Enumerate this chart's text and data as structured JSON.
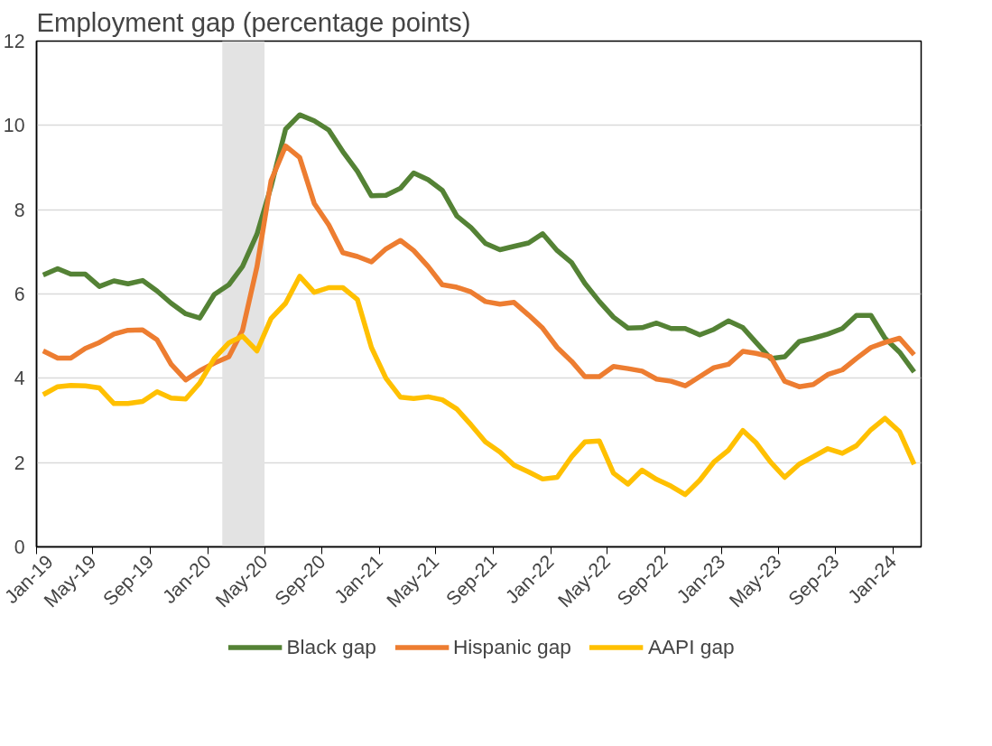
{
  "chart_data": {
    "type": "line",
    "title": "Employment gap (percentage points)",
    "x": [
      "2019-01-15",
      "2019-02-15",
      "2019-03-15",
      "2019-04-15",
      "2019-05-15",
      "2019-06-15",
      "2019-07-15",
      "2019-08-15",
      "2019-09-15",
      "2019-10-15",
      "2019-11-15",
      "2019-12-15",
      "2020-01-15",
      "2020-02-15",
      "2020-03-15",
      "2020-04-15",
      "2020-05-15",
      "2020-06-15",
      "2020-07-15",
      "2020-08-15",
      "2020-09-15",
      "2020-10-15",
      "2020-11-15",
      "2020-12-15",
      "2021-01-15",
      "2021-02-15",
      "2021-03-15",
      "2021-04-15",
      "2021-05-15",
      "2021-06-15",
      "2021-07-15",
      "2021-08-15",
      "2021-09-15",
      "2021-10-15",
      "2021-11-15",
      "2021-12-15",
      "2022-01-15",
      "2022-02-15",
      "2022-03-15",
      "2022-04-15",
      "2022-05-15",
      "2022-06-15",
      "2022-07-15",
      "2022-08-15",
      "2022-09-15",
      "2022-10-15",
      "2022-11-15",
      "2022-12-15",
      "2023-01-15",
      "2023-02-15",
      "2023-03-15",
      "2023-04-15",
      "2023-05-15",
      "2023-06-15",
      "2023-07-15",
      "2023-08-15",
      "2023-09-15",
      "2023-10-15",
      "2023-11-15",
      "2023-12-15",
      "2024-01-15",
      "2024-02-15"
    ],
    "series": [
      {
        "name": "Black gap",
        "color": "#548235",
        "values": [
          6.45,
          6.6,
          6.47,
          6.47,
          6.18,
          6.31,
          6.24,
          6.32,
          6.07,
          5.78,
          5.53,
          5.43,
          5.99,
          6.22,
          6.65,
          7.42,
          8.55,
          9.91,
          10.25,
          10.11,
          9.89,
          9.38,
          8.91,
          8.33,
          8.34,
          8.51,
          8.87,
          8.71,
          8.46,
          7.85,
          7.58,
          7.2,
          7.05,
          7.13,
          7.21,
          7.43,
          7.03,
          6.74,
          6.25,
          5.82,
          5.45,
          5.19,
          5.2,
          5.31,
          5.18,
          5.18,
          5.03,
          5.16,
          5.36,
          5.2,
          4.85,
          4.47,
          4.51,
          4.87,
          4.95,
          5.05,
          5.18,
          5.49,
          5.49,
          4.95,
          4.62,
          4.15
        ]
      },
      {
        "name": "Hispanic gap",
        "color": "#ed7d31",
        "values": [
          4.65,
          4.48,
          4.48,
          4.71,
          4.85,
          5.05,
          5.14,
          5.15,
          4.91,
          4.33,
          3.96,
          4.18,
          4.36,
          4.51,
          5.13,
          6.65,
          8.69,
          9.51,
          9.24,
          8.15,
          7.64,
          6.98,
          6.89,
          6.76,
          7.07,
          7.27,
          7.03,
          6.65,
          6.22,
          6.16,
          6.05,
          5.82,
          5.76,
          5.8,
          5.5,
          5.19,
          4.73,
          4.4,
          4.04,
          4.04,
          4.28,
          4.23,
          4.17,
          3.98,
          3.93,
          3.82,
          4.04,
          4.25,
          4.33,
          4.64,
          4.59,
          4.51,
          3.93,
          3.8,
          3.85,
          4.09,
          4.2,
          4.47,
          4.73,
          4.85,
          4.95,
          4.56
        ]
      },
      {
        "name": "AAPI gap",
        "color": "#ffc000",
        "values": [
          3.61,
          3.8,
          3.83,
          3.82,
          3.77,
          3.4,
          3.4,
          3.45,
          3.68,
          3.53,
          3.51,
          3.89,
          4.47,
          4.84,
          5.0,
          4.65,
          5.42,
          5.78,
          6.42,
          6.04,
          6.15,
          6.15,
          5.87,
          4.73,
          4.0,
          3.55,
          3.52,
          3.56,
          3.49,
          3.27,
          2.9,
          2.49,
          2.25,
          1.94,
          1.78,
          1.61,
          1.65,
          2.14,
          2.49,
          2.51,
          1.75,
          1.49,
          1.82,
          1.6,
          1.44,
          1.24,
          1.58,
          2.01,
          2.29,
          2.76,
          2.47,
          2.01,
          1.65,
          1.96,
          2.14,
          2.33,
          2.22,
          2.4,
          2.78,
          3.05,
          2.73,
          1.96
        ]
      }
    ],
    "xlim": [
      "2019-01-01",
      "2024-03-01"
    ],
    "xticks": [
      {
        "value": "2019-01-01",
        "label": "Jan-19"
      },
      {
        "value": "2019-05-01",
        "label": "May-19"
      },
      {
        "value": "2019-09-01",
        "label": "Sep-19"
      },
      {
        "value": "2020-01-01",
        "label": "Jan-20"
      },
      {
        "value": "2020-05-01",
        "label": "May-20"
      },
      {
        "value": "2020-09-01",
        "label": "Sep-20"
      },
      {
        "value": "2021-01-01",
        "label": "Jan-21"
      },
      {
        "value": "2021-05-01",
        "label": "May-21"
      },
      {
        "value": "2021-09-01",
        "label": "Sep-21"
      },
      {
        "value": "2022-01-01",
        "label": "Jan-22"
      },
      {
        "value": "2022-05-01",
        "label": "May-22"
      },
      {
        "value": "2022-09-01",
        "label": "Sep-22"
      },
      {
        "value": "2023-01-01",
        "label": "Jan-23"
      },
      {
        "value": "2023-05-01",
        "label": "May-23"
      },
      {
        "value": "2023-09-01",
        "label": "Sep-23"
      },
      {
        "value": "2024-01-01",
        "label": "Jan-24"
      }
    ],
    "ylim": [
      0,
      12
    ],
    "yticks": [
      0,
      2,
      4,
      6,
      8,
      10,
      12
    ],
    "bands": [
      {
        "axis": "x",
        "from": "2020-02-01",
        "to": "2020-05-01",
        "color": "#e3e3e3"
      }
    ],
    "grid": "y",
    "legend": "bottom",
    "marker": "none",
    "line_style": "solid"
  }
}
